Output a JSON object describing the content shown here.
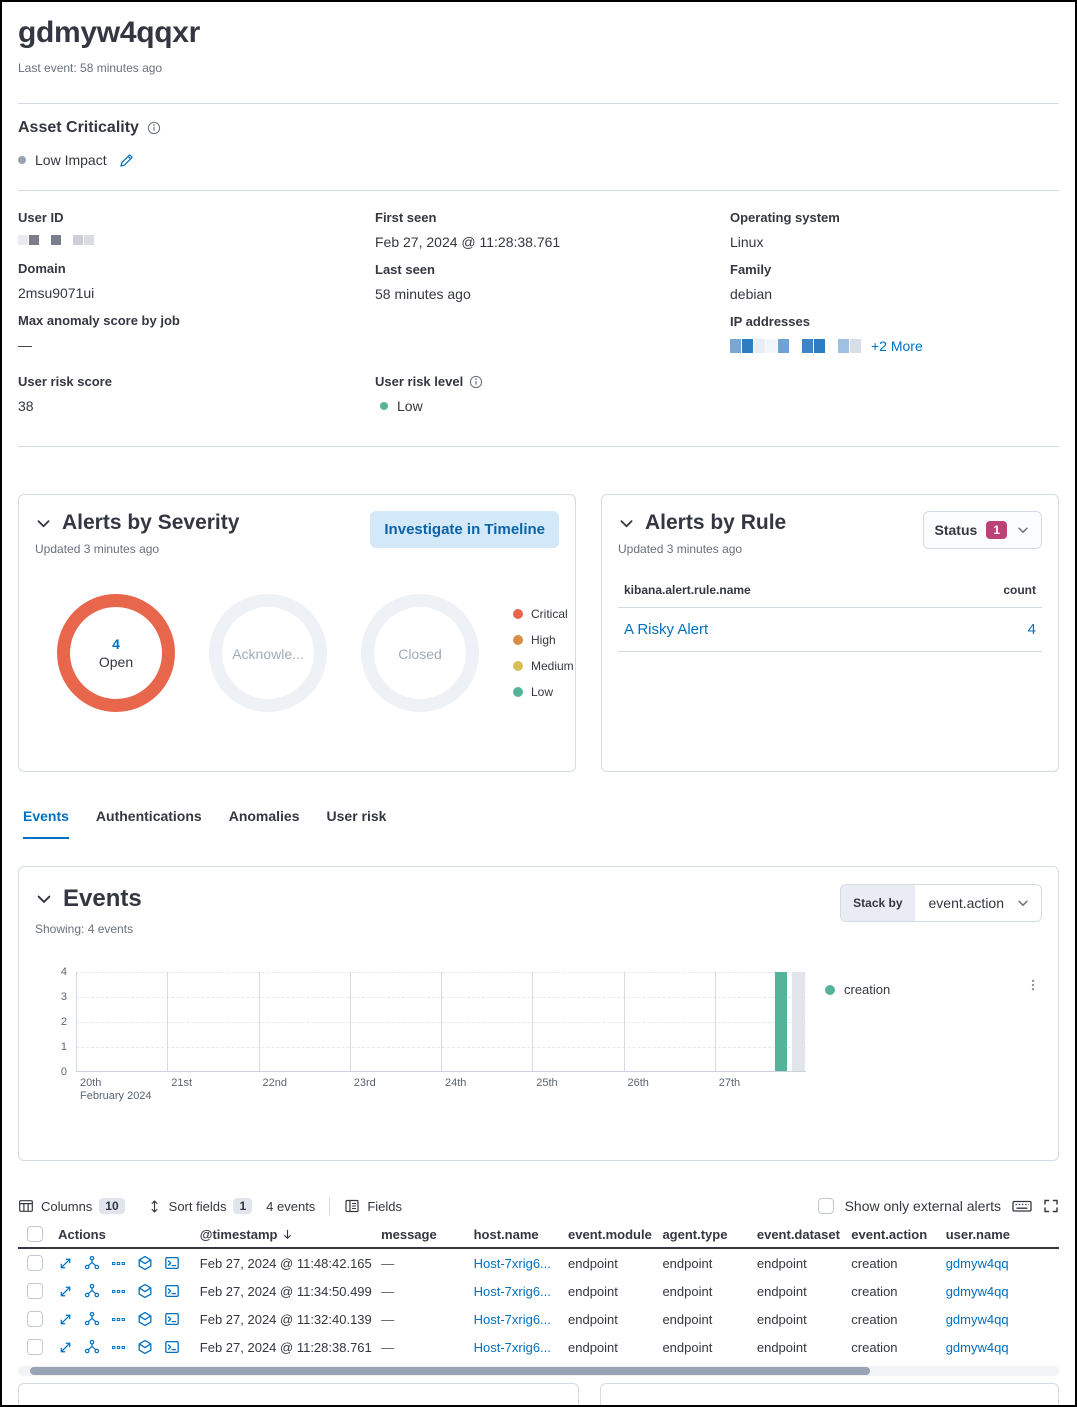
{
  "page": {
    "title": "gdmyw4qqxr",
    "subtitle": "Last event: 58 minutes ago"
  },
  "asset": {
    "label": "Asset Criticality",
    "value": "Low Impact"
  },
  "overview": {
    "user_id_label": "User ID",
    "domain_label": "Domain",
    "domain_value": "2msu9071ui",
    "max_anomaly_label": "Max anomaly score by job",
    "max_anomaly_value": "—",
    "first_seen_label": "First seen",
    "first_seen_value": "Feb 27, 2024 @ 11:28:38.761",
    "last_seen_label": "Last seen",
    "last_seen_value": "58 minutes ago",
    "os_label": "Operating system",
    "os_value": "Linux",
    "family_label": "Family",
    "family_value": "debian",
    "ip_label": "IP addresses",
    "ip_more_link": "+2 More"
  },
  "risk": {
    "score_label": "User risk score",
    "score_value": "38",
    "level_label": "User risk level",
    "level_value": "Low"
  },
  "alerts_by_severity": {
    "title": "Alerts by Severity",
    "updated": "Updated 3 minutes ago",
    "investigate_button": "Investigate in Timeline",
    "donuts": [
      {
        "label": "Open",
        "count": "4",
        "active": true
      },
      {
        "label": "Acknowle...",
        "count": "",
        "active": false
      },
      {
        "label": "Closed",
        "count": "",
        "active": false
      }
    ],
    "legend": [
      {
        "label": "Critical",
        "color": "#e7664c"
      },
      {
        "label": "High",
        "color": "#da8b45"
      },
      {
        "label": "Medium",
        "color": "#d6bf57"
      },
      {
        "label": "Low",
        "color": "#54b399"
      }
    ]
  },
  "alerts_by_rule": {
    "title": "Alerts by Rule",
    "updated": "Updated 3 minutes ago",
    "status_label": "Status",
    "status_badge": "1",
    "columns": [
      "kibana.alert.rule.name",
      "count"
    ],
    "rows": [
      {
        "name": "A Risky Alert",
        "count": "4"
      }
    ]
  },
  "tabs": [
    {
      "label": "Events",
      "active": true
    },
    {
      "label": "Authentications",
      "active": false
    },
    {
      "label": "Anomalies",
      "active": false
    },
    {
      "label": "User risk",
      "active": false
    }
  ],
  "events_panel": {
    "title": "Events",
    "showing": "Showing: 4 events",
    "stack_by_label": "Stack by",
    "stack_by_value": "event.action"
  },
  "chart_data": {
    "type": "bar",
    "title": "Events stacked by event.action",
    "x_axis": {
      "tick_labels": [
        "20th",
        "21st",
        "22nd",
        "23rd",
        "24th",
        "25th",
        "26th",
        "27th"
      ],
      "context": "February 2024"
    },
    "y_axis": {
      "min": 0,
      "max": 4,
      "ticks": [
        0,
        1,
        2,
        3,
        4
      ]
    },
    "series": [
      {
        "name": "creation",
        "color": "#54b399",
        "data": [
          {
            "x": "Feb 27, 2024",
            "y": 4
          }
        ]
      }
    ],
    "bar_x_fraction": 0.9655,
    "annotations": [
      {
        "type": "band",
        "x_fraction": 0.988,
        "color": "#e2e5ec"
      }
    ],
    "grid": true,
    "legend_position": "right"
  },
  "events_table": {
    "toolbar": {
      "columns_label": "Columns",
      "columns_count": "10",
      "sort_label": "Sort fields",
      "sort_count": "1",
      "events_count": "4 events",
      "fields_label": "Fields",
      "external_alerts_label": "Show only external alerts"
    },
    "headers": [
      "Actions",
      "@timestamp",
      "message",
      "host.name",
      "event.module",
      "agent.type",
      "event.dataset",
      "event.action",
      "user.name"
    ],
    "sorted_column": "@timestamp",
    "sort_direction": "desc",
    "rows": [
      {
        "timestamp": "Feb 27, 2024 @ 11:48:42.165",
        "message": "—",
        "host": "Host-7xrig6...",
        "module": "endpoint",
        "agent": "endpoint",
        "dataset": "endpoint",
        "action": "creation",
        "user": "gdmyw4qq"
      },
      {
        "timestamp": "Feb 27, 2024 @ 11:34:50.499",
        "message": "—",
        "host": "Host-7xrig6...",
        "module": "endpoint",
        "agent": "endpoint",
        "dataset": "endpoint",
        "action": "creation",
        "user": "gdmyw4qq"
      },
      {
        "timestamp": "Feb 27, 2024 @ 11:32:40.139",
        "message": "—",
        "host": "Host-7xrig6...",
        "module": "endpoint",
        "agent": "endpoint",
        "dataset": "endpoint",
        "action": "creation",
        "user": "gdmyw4qq"
      },
      {
        "timestamp": "Feb 27, 2024 @ 11:28:38.761",
        "message": "—",
        "host": "Host-7xrig6...",
        "module": "endpoint",
        "agent": "endpoint",
        "dataset": "endpoint",
        "action": "creation",
        "user": "gdmyw4qq"
      }
    ]
  }
}
